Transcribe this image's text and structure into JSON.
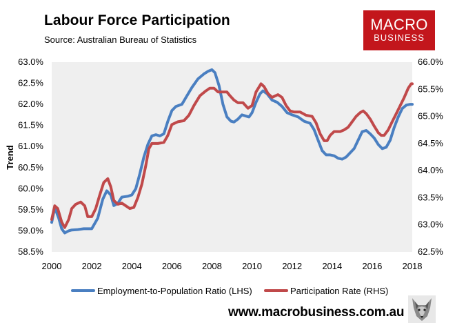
{
  "header": {
    "title": "Labour Force Participation",
    "subtitle": "Source: Australian Bureau of Statistics"
  },
  "logo": {
    "line1": "MACRO",
    "line2": "BUSINESS",
    "color": "#c3161c"
  },
  "footer": {
    "url": "www.macrobusiness.com.au",
    "mascot_icon": "wolf-icon"
  },
  "chart_data": {
    "type": "line",
    "ylabel": "Trend",
    "xlim": [
      2000,
      2018
    ],
    "x_ticks": [
      "2000",
      "2002",
      "2004",
      "2006",
      "2008",
      "2010",
      "2012",
      "2014",
      "2016",
      "2018"
    ],
    "ylim_left": [
      58.5,
      63.0
    ],
    "ylim_right": [
      62.5,
      66.0
    ],
    "y_ticks_left": [
      "58.5%",
      "59.0%",
      "59.5%",
      "60.0%",
      "60.5%",
      "61.0%",
      "61.5%",
      "62.0%",
      "62.5%",
      "63.0%"
    ],
    "y_ticks_right": [
      "62.5%",
      "63.0%",
      "63.5%",
      "64.0%",
      "64.5%",
      "65.0%",
      "65.5%",
      "66.0%"
    ],
    "plot_background": "#efefef",
    "grid": false,
    "legend_position": "bottom",
    "series": [
      {
        "name": "Employment-to-Population Ratio (LHS)",
        "axis": "left",
        "color": "#4a7fc1",
        "points": [
          [
            2000.0,
            59.2
          ],
          [
            2000.15,
            59.55
          ],
          [
            2000.35,
            59.3
          ],
          [
            2000.5,
            59.05
          ],
          [
            2000.65,
            58.95
          ],
          [
            2000.85,
            59.0
          ],
          [
            2001.0,
            59.02
          ],
          [
            2001.3,
            59.03
          ],
          [
            2001.6,
            59.05
          ],
          [
            2002.0,
            59.05
          ],
          [
            2002.3,
            59.3
          ],
          [
            2002.55,
            59.75
          ],
          [
            2002.75,
            59.95
          ],
          [
            2002.95,
            59.85
          ],
          [
            2003.1,
            59.6
          ],
          [
            2003.3,
            59.65
          ],
          [
            2003.5,
            59.8
          ],
          [
            2003.8,
            59.82
          ],
          [
            2004.0,
            59.85
          ],
          [
            2004.2,
            60.0
          ],
          [
            2004.4,
            60.35
          ],
          [
            2004.6,
            60.75
          ],
          [
            2004.8,
            61.05
          ],
          [
            2005.0,
            61.25
          ],
          [
            2005.2,
            61.28
          ],
          [
            2005.4,
            61.25
          ],
          [
            2005.6,
            61.3
          ],
          [
            2005.8,
            61.6
          ],
          [
            2006.0,
            61.85
          ],
          [
            2006.2,
            61.95
          ],
          [
            2006.5,
            62.0
          ],
          [
            2006.75,
            62.2
          ],
          [
            2007.0,
            62.4
          ],
          [
            2007.3,
            62.6
          ],
          [
            2007.6,
            62.72
          ],
          [
            2007.8,
            62.78
          ],
          [
            2008.0,
            62.82
          ],
          [
            2008.15,
            62.75
          ],
          [
            2008.35,
            62.45
          ],
          [
            2008.55,
            62.0
          ],
          [
            2008.75,
            61.7
          ],
          [
            2008.95,
            61.6
          ],
          [
            2009.1,
            61.58
          ],
          [
            2009.3,
            61.65
          ],
          [
            2009.5,
            61.75
          ],
          [
            2009.7,
            61.72
          ],
          [
            2009.85,
            61.7
          ],
          [
            2010.0,
            61.8
          ],
          [
            2010.2,
            62.05
          ],
          [
            2010.4,
            62.25
          ],
          [
            2010.55,
            62.32
          ],
          [
            2010.75,
            62.25
          ],
          [
            2011.0,
            62.1
          ],
          [
            2011.25,
            62.05
          ],
          [
            2011.5,
            61.95
          ],
          [
            2011.75,
            61.8
          ],
          [
            2012.0,
            61.75
          ],
          [
            2012.3,
            61.7
          ],
          [
            2012.6,
            61.6
          ],
          [
            2012.9,
            61.55
          ],
          [
            2013.1,
            61.4
          ],
          [
            2013.3,
            61.15
          ],
          [
            2013.5,
            60.9
          ],
          [
            2013.7,
            60.8
          ],
          [
            2013.9,
            60.8
          ],
          [
            2014.1,
            60.78
          ],
          [
            2014.3,
            60.72
          ],
          [
            2014.5,
            60.7
          ],
          [
            2014.7,
            60.75
          ],
          [
            2014.9,
            60.85
          ],
          [
            2015.1,
            60.95
          ],
          [
            2015.3,
            61.15
          ],
          [
            2015.5,
            61.35
          ],
          [
            2015.7,
            61.38
          ],
          [
            2015.9,
            61.3
          ],
          [
            2016.1,
            61.2
          ],
          [
            2016.3,
            61.05
          ],
          [
            2016.5,
            60.95
          ],
          [
            2016.7,
            60.98
          ],
          [
            2016.9,
            61.15
          ],
          [
            2017.1,
            61.45
          ],
          [
            2017.3,
            61.7
          ],
          [
            2017.5,
            61.9
          ],
          [
            2017.7,
            61.98
          ],
          [
            2017.9,
            62.0
          ],
          [
            2018.0,
            62.0
          ]
        ]
      },
      {
        "name": "Participation Rate (RHS)",
        "axis": "right",
        "color": "#c0494a",
        "points": [
          [
            2000.0,
            63.1
          ],
          [
            2000.15,
            63.35
          ],
          [
            2000.3,
            63.3
          ],
          [
            2000.5,
            63.05
          ],
          [
            2000.65,
            62.95
          ],
          [
            2000.85,
            63.1
          ],
          [
            2001.0,
            63.3
          ],
          [
            2001.2,
            63.38
          ],
          [
            2001.45,
            63.42
          ],
          [
            2001.65,
            63.35
          ],
          [
            2001.8,
            63.15
          ],
          [
            2002.0,
            63.15
          ],
          [
            2002.2,
            63.3
          ],
          [
            2002.4,
            63.55
          ],
          [
            2002.6,
            63.78
          ],
          [
            2002.8,
            63.85
          ],
          [
            2002.95,
            63.7
          ],
          [
            2003.1,
            63.45
          ],
          [
            2003.3,
            63.38
          ],
          [
            2003.5,
            63.4
          ],
          [
            2003.7,
            63.35
          ],
          [
            2003.9,
            63.3
          ],
          [
            2004.1,
            63.32
          ],
          [
            2004.3,
            63.5
          ],
          [
            2004.5,
            63.75
          ],
          [
            2004.7,
            64.1
          ],
          [
            2004.85,
            64.4
          ],
          [
            2005.0,
            64.5
          ],
          [
            2005.3,
            64.5
          ],
          [
            2005.6,
            64.52
          ],
          [
            2005.8,
            64.65
          ],
          [
            2006.0,
            64.85
          ],
          [
            2006.3,
            64.9
          ],
          [
            2006.6,
            64.92
          ],
          [
            2006.85,
            65.02
          ],
          [
            2007.1,
            65.2
          ],
          [
            2007.4,
            65.38
          ],
          [
            2007.7,
            65.47
          ],
          [
            2007.9,
            65.52
          ],
          [
            2008.1,
            65.52
          ],
          [
            2008.3,
            65.45
          ],
          [
            2008.5,
            65.45
          ],
          [
            2008.75,
            65.45
          ],
          [
            2008.9,
            65.38
          ],
          [
            2009.1,
            65.3
          ],
          [
            2009.3,
            65.25
          ],
          [
            2009.55,
            65.25
          ],
          [
            2009.8,
            65.15
          ],
          [
            2010.0,
            65.2
          ],
          [
            2010.2,
            65.45
          ],
          [
            2010.45,
            65.6
          ],
          [
            2010.6,
            65.55
          ],
          [
            2010.8,
            65.42
          ],
          [
            2011.0,
            65.35
          ],
          [
            2011.3,
            65.4
          ],
          [
            2011.5,
            65.35
          ],
          [
            2011.7,
            65.2
          ],
          [
            2011.9,
            65.1
          ],
          [
            2012.1,
            65.08
          ],
          [
            2012.4,
            65.08
          ],
          [
            2012.7,
            65.02
          ],
          [
            2013.0,
            65.0
          ],
          [
            2013.2,
            64.88
          ],
          [
            2013.4,
            64.68
          ],
          [
            2013.6,
            64.55
          ],
          [
            2013.75,
            64.55
          ],
          [
            2013.9,
            64.65
          ],
          [
            2014.1,
            64.72
          ],
          [
            2014.4,
            64.72
          ],
          [
            2014.6,
            64.75
          ],
          [
            2014.8,
            64.8
          ],
          [
            2015.0,
            64.9
          ],
          [
            2015.2,
            65.0
          ],
          [
            2015.4,
            65.07
          ],
          [
            2015.55,
            65.1
          ],
          [
            2015.7,
            65.05
          ],
          [
            2015.9,
            64.95
          ],
          [
            2016.1,
            64.82
          ],
          [
            2016.3,
            64.7
          ],
          [
            2016.45,
            64.65
          ],
          [
            2016.6,
            64.65
          ],
          [
            2016.8,
            64.75
          ],
          [
            2017.0,
            64.9
          ],
          [
            2017.2,
            65.05
          ],
          [
            2017.4,
            65.2
          ],
          [
            2017.6,
            65.35
          ],
          [
            2017.8,
            65.52
          ],
          [
            2017.95,
            65.6
          ],
          [
            2018.0,
            65.6
          ]
        ]
      }
    ]
  }
}
